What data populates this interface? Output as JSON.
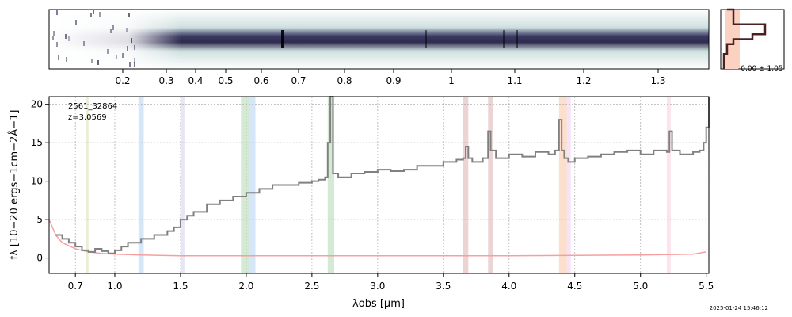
{
  "chart_data": [
    {
      "type": "heatmap",
      "panel": "2d-spectrum",
      "top_axis_ticks": [
        0.2,
        0.3,
        0.4,
        0.5,
        0.6,
        0.7,
        0.8,
        0.9,
        1.0,
        1.1,
        1.2,
        1.3
      ],
      "colormap": [
        "#ffffff",
        "#c9dcdc",
        "#6c8f98",
        "#2e2a4d",
        "#000000"
      ]
    },
    {
      "type": "line",
      "panel": "1d-spectrum",
      "title_lines": [
        "2561_32864",
        "z=3.0569"
      ],
      "xlabel": "λobs [μm]",
      "ylabel": "fλ [10−20 ergs−1cm−2Å−1]",
      "xlim": [
        0.5,
        5.52
      ],
      "ylim": [
        -2,
        21
      ],
      "x_ticks": [
        0.7,
        1.0,
        1.5,
        2.0,
        2.5,
        3.0,
        3.5,
        4.0,
        4.5,
        5.0,
        5.5
      ],
      "x_tick_labels": [
        "0.7",
        "1.0",
        "1.5",
        "2.0",
        "2.5",
        "3.0",
        "3.5",
        "4.0",
        "4.5",
        "5.0",
        "5.5"
      ],
      "y_ticks": [
        0,
        5,
        10,
        15,
        20
      ],
      "grid": true,
      "series": [
        {
          "color": "#808080",
          "x": [
            0.55,
            0.6,
            0.65,
            0.7,
            0.75,
            0.8,
            0.85,
            0.9,
            0.95,
            1.0,
            1.05,
            1.1,
            1.15,
            1.2,
            1.3,
            1.4,
            1.45,
            1.5,
            1.55,
            1.6,
            1.7,
            1.8,
            1.9,
            2.0,
            2.1,
            2.2,
            2.3,
            2.4,
            2.5,
            2.55,
            2.6,
            2.62,
            2.64,
            2.66,
            2.7,
            2.8,
            2.9,
            3.0,
            3.1,
            3.2,
            3.3,
            3.4,
            3.5,
            3.6,
            3.65,
            3.67,
            3.69,
            3.72,
            3.8,
            3.84,
            3.86,
            3.9,
            4.0,
            4.1,
            4.2,
            4.3,
            4.35,
            4.38,
            4.4,
            4.42,
            4.45,
            4.5,
            4.6,
            4.7,
            4.8,
            4.9,
            5.0,
            5.1,
            5.2,
            5.22,
            5.24,
            5.3,
            5.4,
            5.45,
            5.48,
            5.5,
            5.52
          ],
          "y": [
            3.0,
            2.5,
            2.0,
            1.5,
            1.0,
            0.8,
            1.2,
            0.9,
            0.6,
            1.0,
            1.5,
            2.0,
            2.0,
            2.5,
            3.0,
            3.5,
            4.0,
            5.0,
            5.5,
            6.0,
            7.0,
            7.5,
            8.0,
            8.5,
            9.0,
            9.5,
            9.5,
            9.8,
            10.0,
            10.2,
            10.5,
            15.0,
            21.0,
            11.0,
            10.5,
            11.0,
            11.2,
            11.5,
            11.3,
            11.5,
            12.0,
            12.0,
            12.5,
            12.8,
            13.0,
            14.5,
            13.0,
            12.5,
            13.0,
            16.5,
            14.0,
            13.0,
            13.5,
            13.2,
            13.8,
            13.5,
            14.0,
            18.0,
            14.0,
            13.0,
            12.5,
            13.0,
            13.2,
            13.5,
            13.8,
            14.0,
            13.5,
            14.0,
            13.8,
            16.5,
            14.0,
            13.5,
            13.8,
            14.0,
            15.0,
            17.0,
            21.0
          ]
        },
        {
          "color": "#f4a0a0",
          "x": [
            0.5,
            0.55,
            0.6,
            0.7,
            0.8,
            0.9,
            1.0,
            1.2,
            1.5,
            2.0,
            3.0,
            4.0,
            4.5,
            5.0,
            5.4,
            5.5
          ],
          "y": [
            5.0,
            3.0,
            2.0,
            1.2,
            0.8,
            0.6,
            0.5,
            0.4,
            0.3,
            0.3,
            0.3,
            0.3,
            0.35,
            0.4,
            0.5,
            0.8
          ]
        }
      ],
      "bands": [
        {
          "x0": 0.78,
          "x1": 0.8,
          "color": "#ccdca0"
        },
        {
          "x0": 1.18,
          "x1": 1.22,
          "color": "#a0c8f0"
        },
        {
          "x0": 1.5,
          "x1": 1.53,
          "color": "#c8c8f0"
        },
        {
          "x0": 1.96,
          "x1": 2.03,
          "color": "#a0d0a0"
        },
        {
          "x0": 2.03,
          "x1": 2.07,
          "color": "#a0c8f0"
        },
        {
          "x0": 2.62,
          "x1": 2.67,
          "color": "#a0d0a0"
        },
        {
          "x0": 3.65,
          "x1": 3.69,
          "color": "#d8a0a0"
        },
        {
          "x0": 3.84,
          "x1": 3.88,
          "color": "#d8a0a0"
        },
        {
          "x0": 4.38,
          "x1": 4.44,
          "color": "#f8b890"
        },
        {
          "x0": 4.44,
          "x1": 4.47,
          "color": "#e8c0f0"
        },
        {
          "x0": 5.2,
          "x1": 5.23,
          "color": "#f8c0d8"
        }
      ]
    },
    {
      "type": "line",
      "panel": "spatial-profile",
      "label": "-0.00 ± 1.05",
      "x": [
        0.1,
        0.2,
        0.7,
        0.5,
        0.2,
        0.1,
        0.05
      ],
      "y": [
        -3,
        -1.5,
        -0.5,
        0,
        0.5,
        1.5,
        3
      ]
    }
  ],
  "timestamp": "2025-01-24 15:46:12"
}
